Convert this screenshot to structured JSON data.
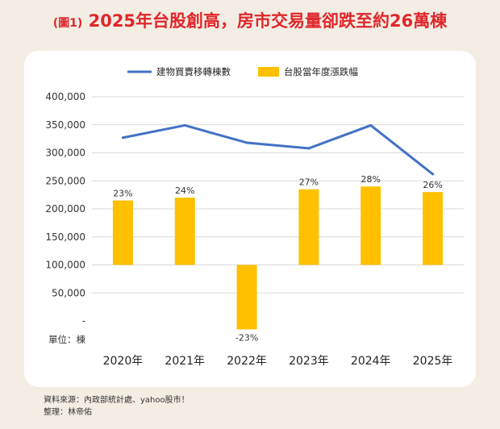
{
  "title": {
    "tag": "(圖1)",
    "text": "2025年台股創高，房市交易量卻跌至約26萬棟"
  },
  "source": {
    "line1": "資料來源：內政部統計處、yahoo股市！",
    "line2": "整理：林帝佑"
  },
  "colors": {
    "title": "#e0262b",
    "line": "#4472c4",
    "bar": "#ffc000",
    "card": "#ffffff",
    "background": "#f3ede4"
  },
  "chart_data": {
    "type": "bar+line",
    "categories": [
      "2020年",
      "2021年",
      "2022年",
      "2023年",
      "2024年",
      "2025年"
    ],
    "unit_label": "單位：棟",
    "y_ticks": [
      "400,000",
      "350,000",
      "300,000",
      "250,000",
      "200,000",
      "150,000",
      "100,000",
      "50,000",
      "-"
    ],
    "ylim": [
      0,
      400000
    ],
    "grid": true,
    "legend_position": "top-center",
    "series": [
      {
        "name": "建物買賣移轉棟數",
        "kind": "line",
        "values": [
          327000,
          349000,
          318000,
          308000,
          349000,
          262000
        ]
      },
      {
        "name": "台股當年度漲跌幅",
        "kind": "bar",
        "values": [
          23,
          24,
          -23,
          27,
          28,
          26
        ],
        "labels": [
          "23%",
          "24%",
          "-23%",
          "27%",
          "28%",
          "26%"
        ],
        "scale_note": "bars share the left axis: 0% at the 100,000 gridline"
      }
    ]
  }
}
